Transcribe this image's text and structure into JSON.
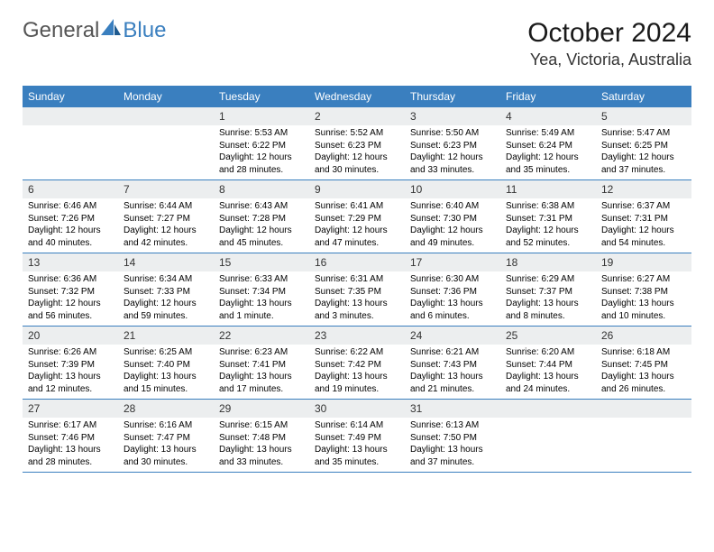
{
  "logo": {
    "text1": "General",
    "text2": "Blue"
  },
  "title": "October 2024",
  "location": "Yea, Victoria, Australia",
  "colors": {
    "header_bg": "#3a7fbf",
    "daynum_bg": "#eceeef",
    "week_border": "#3a7fbf",
    "page_bg": "#ffffff",
    "text": "#000000"
  },
  "day_headers": [
    "Sunday",
    "Monday",
    "Tuesday",
    "Wednesday",
    "Thursday",
    "Friday",
    "Saturday"
  ],
  "weeks": [
    [
      null,
      null,
      {
        "n": "1",
        "sr": "5:53 AM",
        "ss": "6:22 PM",
        "dl": "12 hours and 28 minutes."
      },
      {
        "n": "2",
        "sr": "5:52 AM",
        "ss": "6:23 PM",
        "dl": "12 hours and 30 minutes."
      },
      {
        "n": "3",
        "sr": "5:50 AM",
        "ss": "6:23 PM",
        "dl": "12 hours and 33 minutes."
      },
      {
        "n": "4",
        "sr": "5:49 AM",
        "ss": "6:24 PM",
        "dl": "12 hours and 35 minutes."
      },
      {
        "n": "5",
        "sr": "5:47 AM",
        "ss": "6:25 PM",
        "dl": "12 hours and 37 minutes."
      }
    ],
    [
      {
        "n": "6",
        "sr": "6:46 AM",
        "ss": "7:26 PM",
        "dl": "12 hours and 40 minutes."
      },
      {
        "n": "7",
        "sr": "6:44 AM",
        "ss": "7:27 PM",
        "dl": "12 hours and 42 minutes."
      },
      {
        "n": "8",
        "sr": "6:43 AM",
        "ss": "7:28 PM",
        "dl": "12 hours and 45 minutes."
      },
      {
        "n": "9",
        "sr": "6:41 AM",
        "ss": "7:29 PM",
        "dl": "12 hours and 47 minutes."
      },
      {
        "n": "10",
        "sr": "6:40 AM",
        "ss": "7:30 PM",
        "dl": "12 hours and 49 minutes."
      },
      {
        "n": "11",
        "sr": "6:38 AM",
        "ss": "7:31 PM",
        "dl": "12 hours and 52 minutes."
      },
      {
        "n": "12",
        "sr": "6:37 AM",
        "ss": "7:31 PM",
        "dl": "12 hours and 54 minutes."
      }
    ],
    [
      {
        "n": "13",
        "sr": "6:36 AM",
        "ss": "7:32 PM",
        "dl": "12 hours and 56 minutes."
      },
      {
        "n": "14",
        "sr": "6:34 AM",
        "ss": "7:33 PM",
        "dl": "12 hours and 59 minutes."
      },
      {
        "n": "15",
        "sr": "6:33 AM",
        "ss": "7:34 PM",
        "dl": "13 hours and 1 minute."
      },
      {
        "n": "16",
        "sr": "6:31 AM",
        "ss": "7:35 PM",
        "dl": "13 hours and 3 minutes."
      },
      {
        "n": "17",
        "sr": "6:30 AM",
        "ss": "7:36 PM",
        "dl": "13 hours and 6 minutes."
      },
      {
        "n": "18",
        "sr": "6:29 AM",
        "ss": "7:37 PM",
        "dl": "13 hours and 8 minutes."
      },
      {
        "n": "19",
        "sr": "6:27 AM",
        "ss": "7:38 PM",
        "dl": "13 hours and 10 minutes."
      }
    ],
    [
      {
        "n": "20",
        "sr": "6:26 AM",
        "ss": "7:39 PM",
        "dl": "13 hours and 12 minutes."
      },
      {
        "n": "21",
        "sr": "6:25 AM",
        "ss": "7:40 PM",
        "dl": "13 hours and 15 minutes."
      },
      {
        "n": "22",
        "sr": "6:23 AM",
        "ss": "7:41 PM",
        "dl": "13 hours and 17 minutes."
      },
      {
        "n": "23",
        "sr": "6:22 AM",
        "ss": "7:42 PM",
        "dl": "13 hours and 19 minutes."
      },
      {
        "n": "24",
        "sr": "6:21 AM",
        "ss": "7:43 PM",
        "dl": "13 hours and 21 minutes."
      },
      {
        "n": "25",
        "sr": "6:20 AM",
        "ss": "7:44 PM",
        "dl": "13 hours and 24 minutes."
      },
      {
        "n": "26",
        "sr": "6:18 AM",
        "ss": "7:45 PM",
        "dl": "13 hours and 26 minutes."
      }
    ],
    [
      {
        "n": "27",
        "sr": "6:17 AM",
        "ss": "7:46 PM",
        "dl": "13 hours and 28 minutes."
      },
      {
        "n": "28",
        "sr": "6:16 AM",
        "ss": "7:47 PM",
        "dl": "13 hours and 30 minutes."
      },
      {
        "n": "29",
        "sr": "6:15 AM",
        "ss": "7:48 PM",
        "dl": "13 hours and 33 minutes."
      },
      {
        "n": "30",
        "sr": "6:14 AM",
        "ss": "7:49 PM",
        "dl": "13 hours and 35 minutes."
      },
      {
        "n": "31",
        "sr": "6:13 AM",
        "ss": "7:50 PM",
        "dl": "13 hours and 37 minutes."
      },
      null,
      null
    ]
  ],
  "labels": {
    "sunrise": "Sunrise:",
    "sunset": "Sunset:",
    "daylight": "Daylight:"
  }
}
